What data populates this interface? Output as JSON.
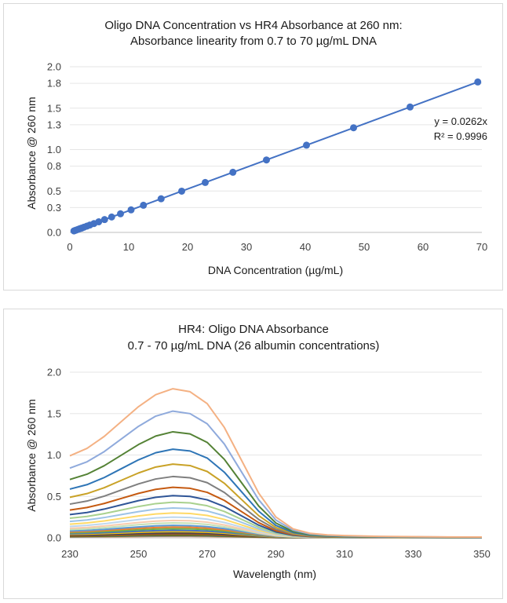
{
  "chart_data": [
    {
      "type": "scatter",
      "title": "Oligo DNA Concentration vs HR4 Absorbance at 260 nm:",
      "subtitle": "Absorbance linearity from 0.7 to 70 µg/mL DNA",
      "xlabel": "DNA Concentration (µg/mL)",
      "ylabel": "Absorbance @ 260 nm",
      "xlim": [
        0,
        70
      ],
      "ylim": [
        0,
        2.0
      ],
      "xticks": [
        0,
        10,
        20,
        30,
        40,
        50,
        60,
        70
      ],
      "yticks": [
        0.0,
        0.3,
        0.5,
        0.8,
        1.0,
        1.3,
        1.5,
        1.8,
        2.0
      ],
      "ytick_labels": [
        "0.0",
        "0.3",
        "0.5",
        "0.8",
        "1.0",
        "1.3",
        "1.5",
        "1.8",
        "2.0"
      ],
      "series_color": "#4472c4",
      "x": [
        0.7,
        0.9,
        1.1,
        1.4,
        1.7,
        2.0,
        2.4,
        2.9,
        3.4,
        4.1,
        4.9,
        5.9,
        7.1,
        8.6,
        10.4,
        12.5,
        15.5,
        19.0,
        23.0,
        27.7,
        33.4,
        40.2,
        48.2,
        57.8,
        69.3
      ],
      "y": [
        0.018,
        0.024,
        0.029,
        0.037,
        0.045,
        0.052,
        0.063,
        0.076,
        0.089,
        0.107,
        0.128,
        0.155,
        0.186,
        0.225,
        0.272,
        0.328,
        0.406,
        0.498,
        0.603,
        0.726,
        0.875,
        1.053,
        1.263,
        1.514,
        1.816
      ],
      "trendline": {
        "type": "linear",
        "slope": 0.0262,
        "intercept": 0
      },
      "equation_label": "y = 0.0262x",
      "r2_label": "R² = 0.9996"
    },
    {
      "type": "line",
      "title": "HR4: Oligo DNA Absorbance",
      "subtitle": "0.7 - 70 µg/mL DNA (26 albumin concentrations)",
      "xlabel": "Wavelength (nm)",
      "ylabel": "Absorbance @ 260 nm",
      "xlim": [
        230,
        350
      ],
      "ylim": [
        0,
        2.0
      ],
      "xticks": [
        230,
        250,
        270,
        290,
        310,
        330,
        350
      ],
      "yticks": [
        0.0,
        0.5,
        1.0,
        1.5,
        2.0
      ],
      "ytick_labels": [
        "0.0",
        "0.5",
        "1.0",
        "1.5",
        "2.0"
      ],
      "shape_wavelengths": [
        230,
        235,
        240,
        245,
        250,
        255,
        260,
        265,
        270,
        275,
        280,
        285,
        290,
        295,
        300,
        305,
        310,
        320,
        330,
        340,
        350
      ],
      "shape_relative": [
        0.55,
        0.6,
        0.68,
        0.78,
        0.88,
        0.96,
        1.0,
        0.98,
        0.9,
        0.74,
        0.52,
        0.3,
        0.14,
        0.06,
        0.03,
        0.02,
        0.015,
        0.01,
        0.008,
        0.006,
        0.005
      ],
      "peak_values": [
        1.8,
        1.53,
        1.28,
        1.07,
        0.89,
        0.74,
        0.61,
        0.51,
        0.43,
        0.36,
        0.3,
        0.25,
        0.21,
        0.18,
        0.15,
        0.13,
        0.11,
        0.09,
        0.075,
        0.063,
        0.052,
        0.045,
        0.037,
        0.029,
        0.024,
        0.018
      ],
      "colors": [
        "#f4b183",
        "#8faadc",
        "#548235",
        "#2e75b6",
        "#c9a227",
        "#7f7f7f",
        "#c55a11",
        "#2f5597",
        "#a9d18e",
        "#9dc3e6",
        "#ffd966",
        "#bdd7ee",
        "#f8cbad",
        "#c5e0b4",
        "#5b9bd5",
        "#ed7d31",
        "#70ad47",
        "#4472c4",
        "#ffc000",
        "#264478",
        "#9e480e",
        "#636363",
        "#997300",
        "#43682b",
        "#698ed0",
        "#f1975a"
      ]
    }
  ]
}
